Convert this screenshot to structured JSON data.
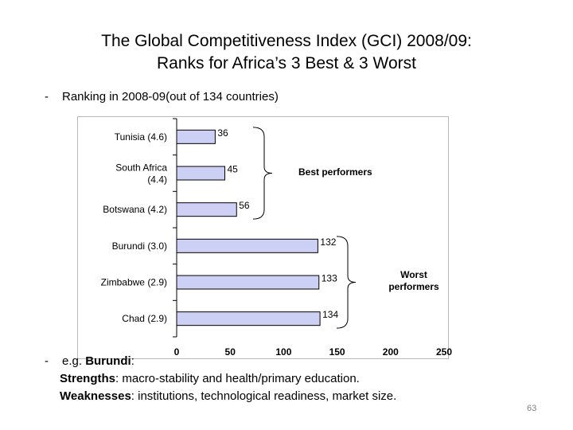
{
  "slide": {
    "title_line1": "The Global Competitiveness Index (GCI) 2008/09:",
    "title_line2": "Ranks for Africa’s 3 Best & 3 Worst",
    "subtitle_dash": "-",
    "subtitle": "Ranking in 2008-09(out of 134 countries)",
    "notes": {
      "dash": "-",
      "intro": "e.g. ",
      "country": "Burundi",
      "country_suffix": ":",
      "strengths_label": "Strengths",
      "strengths_text": ": macro-stability and health/primary education.",
      "weaknesses_label": "Weaknesses",
      "weaknesses_text": ": institutions, technological readiness, market size."
    },
    "page_number": "63"
  },
  "chart_data": {
    "type": "bar",
    "orientation": "horizontal",
    "categories": [
      [
        "Tunisia (4.6)"
      ],
      [
        "South Africa",
        "(4.4)"
      ],
      [
        "Botswana (4.2)"
      ],
      [
        "Burundi (3.0)"
      ],
      [
        "Zimbabwe (2.9)"
      ],
      [
        "Chad (2.9)"
      ]
    ],
    "values": [
      36,
      45,
      56,
      132,
      133,
      134
    ],
    "data_labels": [
      "36",
      "45",
      "56",
      "132",
      "133",
      "134"
    ],
    "xlim": [
      0,
      250
    ],
    "x_ticks": [
      0,
      50,
      100,
      150,
      200,
      250
    ],
    "bar_color": "#cdd0f5",
    "bar_edge_color": "#000000",
    "annotations": [
      {
        "text": [
          "Best performers"
        ],
        "group": [
          0,
          2
        ]
      },
      {
        "text": [
          "Worst",
          "performers"
        ],
        "group": [
          3,
          5
        ]
      }
    ]
  }
}
